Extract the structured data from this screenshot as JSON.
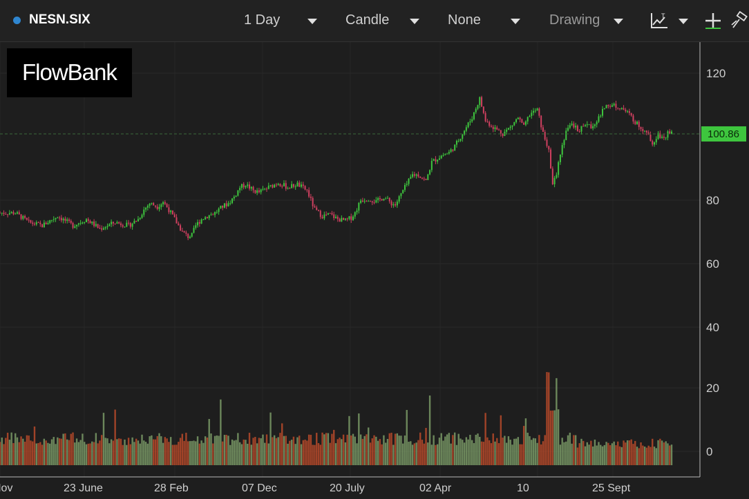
{
  "toolbar": {
    "symbol": "NESN.SIX",
    "interval": "1 Day",
    "chart_style": "Candle",
    "study": "None",
    "drawing": "Drawing",
    "symbol_dot_color": "#2f86d0",
    "icons": [
      "chart-type-icon",
      "chevron-down-icon",
      "crosshair-plus-icon",
      "hammer-icon"
    ]
  },
  "logo": {
    "text": "FlowBank"
  },
  "price_badge": {
    "value": "100.86",
    "color": "#3ec63e"
  },
  "chart_data": {
    "type": "candlestick",
    "title": "",
    "xlabel": "",
    "ylabel": "",
    "price_axis_ticks": [
      120,
      80,
      60,
      40
    ],
    "volume_axis_ticks": [
      20,
      0
    ],
    "x_tick_labels": [
      "Nov",
      "23 June",
      "28 Feb",
      "07 Dec",
      "20 July",
      "02 Apr",
      "10",
      "25 Sept"
    ],
    "last_price": 100.86,
    "grid": true,
    "up_color": "#3ec63e",
    "down_color": "#d04060",
    "volume_up_color": "#7a9a66",
    "volume_down_color": "#b84a2a",
    "price_path": [
      [
        0,
        76
      ],
      [
        8,
        76
      ],
      [
        15,
        73
      ],
      [
        22,
        72
      ],
      [
        30,
        75
      ],
      [
        38,
        72
      ],
      [
        45,
        74
      ],
      [
        52,
        71
      ],
      [
        60,
        73
      ],
      [
        67,
        72
      ],
      [
        72,
        74
      ],
      [
        75,
        77
      ],
      [
        78,
        79
      ],
      [
        82,
        78
      ],
      [
        85,
        79.5
      ],
      [
        88,
        77
      ],
      [
        92,
        73
      ],
      [
        95,
        70
      ],
      [
        98,
        68.5
      ],
      [
        100,
        69
      ],
      [
        102,
        72
      ],
      [
        105,
        74
      ],
      [
        108,
        75
      ],
      [
        112,
        76
      ],
      [
        116,
        78
      ],
      [
        119,
        79
      ],
      [
        122,
        81
      ],
      [
        125,
        84
      ],
      [
        128,
        85
      ],
      [
        132,
        83
      ],
      [
        135,
        82.5
      ],
      [
        140,
        84
      ],
      [
        145,
        85.5
      ],
      [
        150,
        84
      ],
      [
        155,
        85
      ],
      [
        160,
        83
      ],
      [
        164,
        77
      ],
      [
        168,
        75
      ],
      [
        172,
        75.5
      ],
      [
        176,
        74
      ],
      [
        180,
        73.5
      ],
      [
        183,
        74.5
      ],
      [
        185,
        76
      ],
      [
        188,
        80
      ],
      [
        192,
        80.5
      ],
      [
        196,
        79.5
      ],
      [
        200,
        81
      ],
      [
        204,
        79
      ],
      [
        206,
        78.5
      ],
      [
        210,
        83
      ],
      [
        215,
        88
      ],
      [
        218,
        88
      ],
      [
        222,
        86
      ],
      [
        225,
        92
      ],
      [
        230,
        94
      ],
      [
        234,
        95
      ],
      [
        237,
        97
      ],
      [
        240,
        100
      ],
      [
        243,
        103
      ],
      [
        246,
        106
      ],
      [
        250,
        112
      ],
      [
        253,
        105
      ],
      [
        257,
        103
      ],
      [
        262,
        101
      ],
      [
        266,
        103
      ],
      [
        270,
        106
      ],
      [
        273,
        103
      ],
      [
        276,
        107
      ],
      [
        280,
        108.5
      ],
      [
        283,
        101
      ],
      [
        286,
        96
      ],
      [
        288,
        85
      ],
      [
        290,
        88
      ],
      [
        292,
        95
      ],
      [
        295,
        102
      ],
      [
        298,
        103.5
      ],
      [
        302,
        102
      ],
      [
        305,
        104
      ],
      [
        308,
        103
      ],
      [
        312,
        106
      ],
      [
        316,
        110
      ],
      [
        320,
        110
      ],
      [
        324,
        109
      ],
      [
        328,
        107
      ],
      [
        332,
        104
      ],
      [
        336,
        102
      ],
      [
        340,
        98
      ],
      [
        343,
        101
      ],
      [
        346,
        99
      ],
      [
        348,
        102
      ],
      [
        350,
        101
      ]
    ]
  }
}
